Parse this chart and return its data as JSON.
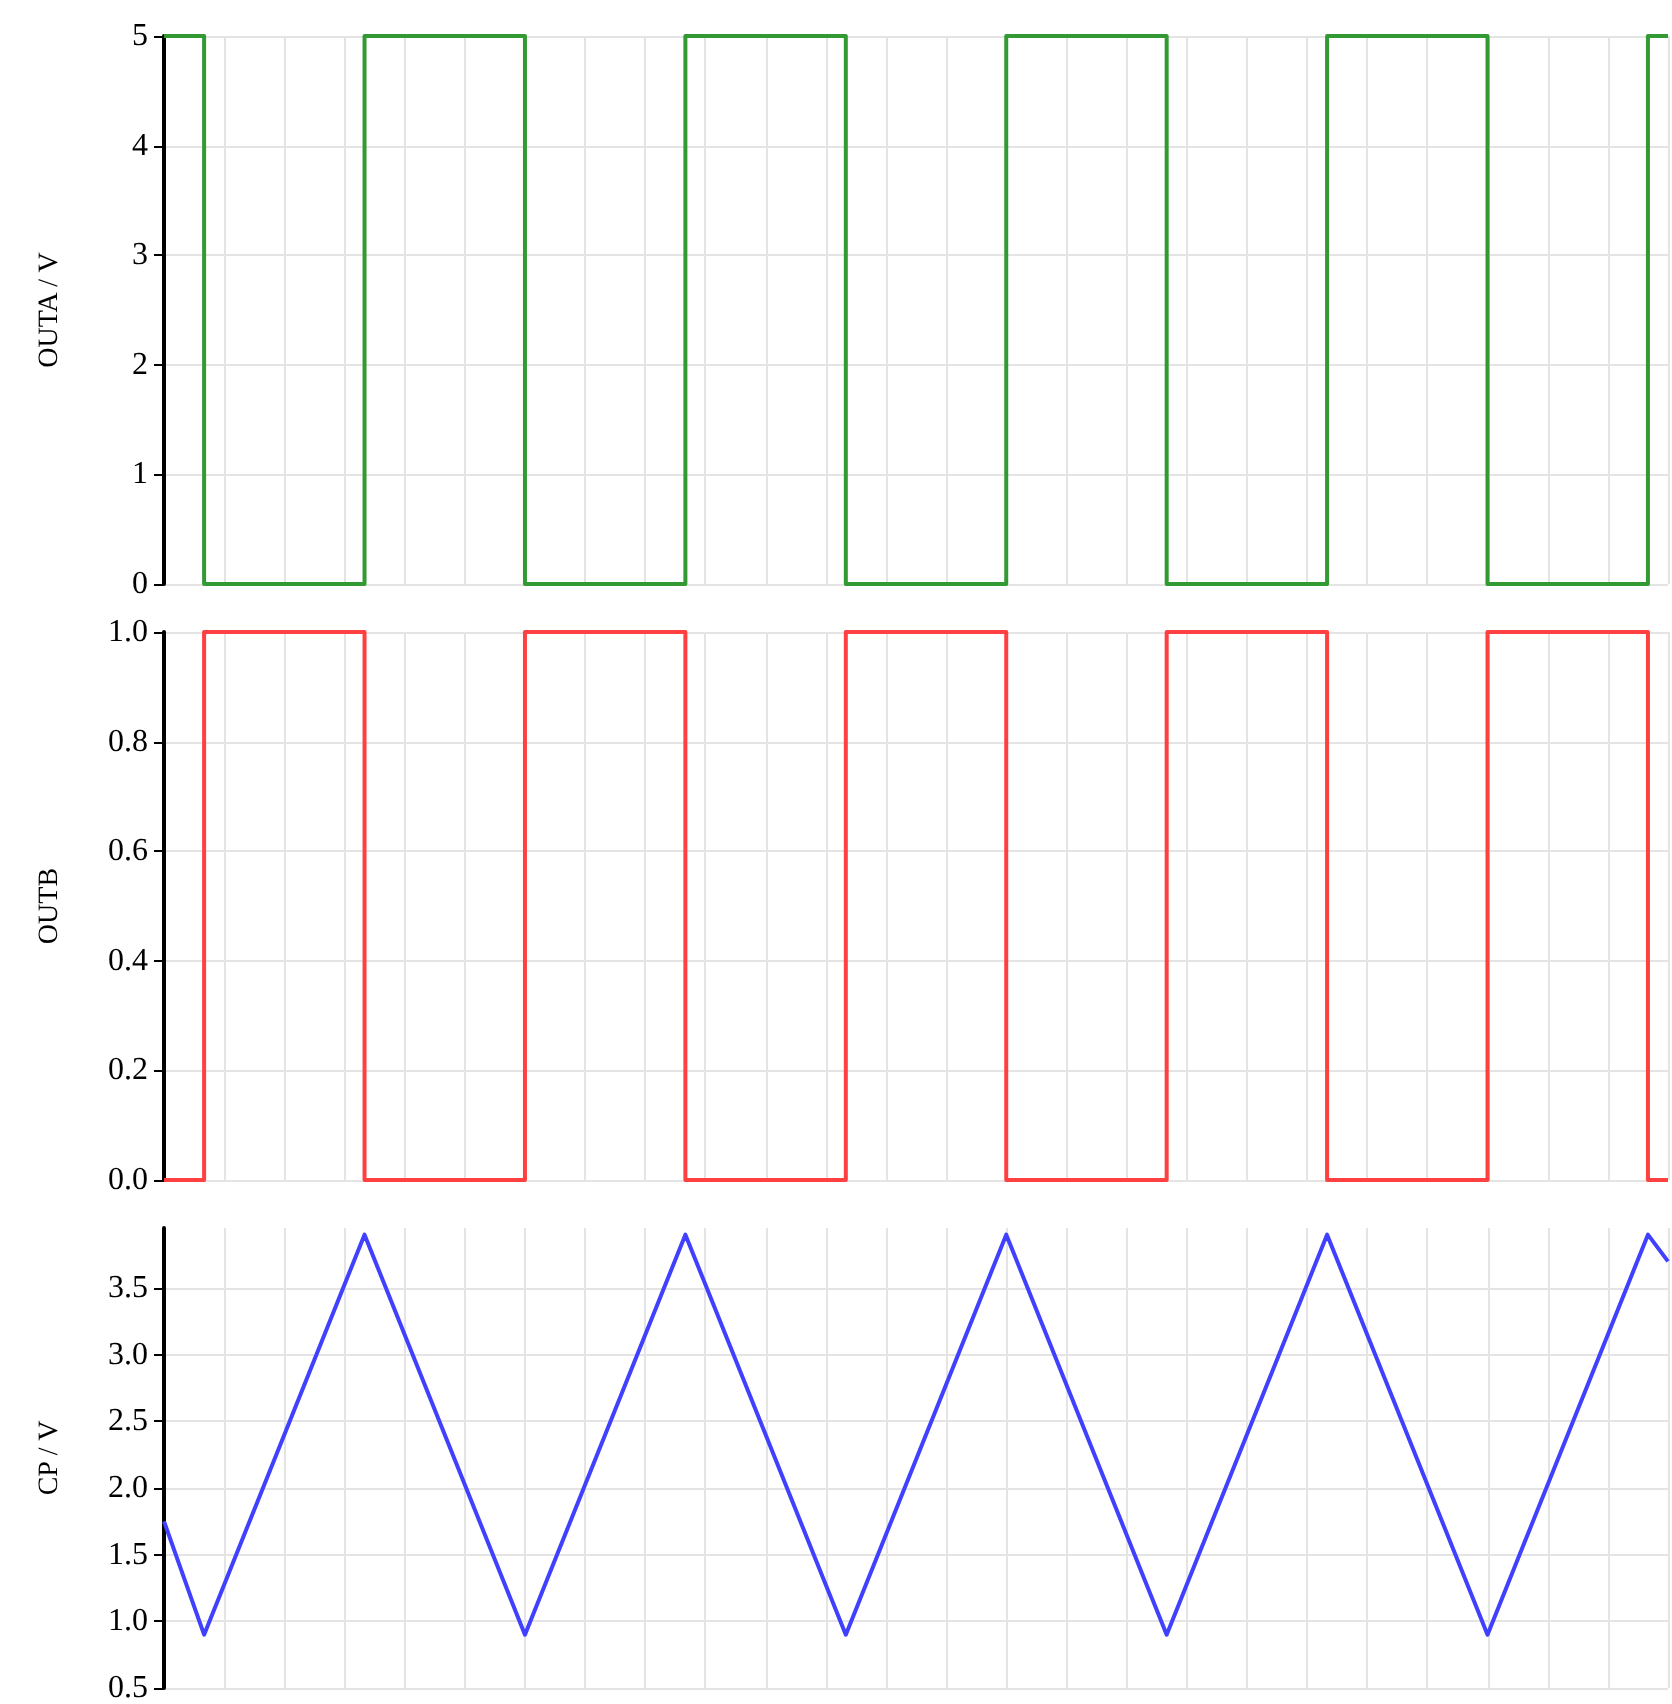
{
  "chart_data": [
    {
      "type": "step",
      "ylabel": "OUTA / V",
      "categories": [
        null,
        null,
        null,
        null,
        null,
        null,
        null,
        null,
        null,
        null,
        null,
        null,
        null,
        null,
        null,
        null,
        null,
        null,
        null,
        null,
        null,
        null,
        null,
        null,
        null,
        null,
        null,
        null,
        null,
        null,
        null,
        null,
        null,
        null,
        null,
        null,
        null,
        null,
        null,
        null,
        null,
        null,
        null,
        null,
        null,
        null,
        null,
        null,
        null,
        null,
        null,
        null,
        null,
        null,
        null,
        null,
        null,
        null,
        null,
        null,
        null,
        null,
        null,
        null,
        null,
        null,
        null,
        null,
        null,
        null,
        null,
        null,
        null,
        null,
        null,
        null
      ],
      "series": [
        {
          "color": "#339933",
          "values": [
            5,
            5,
            0,
            0,
            0,
            0,
            0,
            0,
            0,
            0,
            5,
            5,
            5,
            5,
            5,
            5,
            5,
            5,
            0,
            0,
            0,
            0,
            0,
            0,
            0,
            0,
            5,
            5,
            5,
            5,
            5,
            5,
            5,
            5,
            0,
            0,
            0,
            0,
            0,
            0,
            0,
            0,
            5,
            5,
            5,
            5,
            5,
            5,
            5,
            5,
            0,
            0,
            0,
            0,
            0,
            0,
            0,
            0,
            5,
            5,
            5,
            5,
            5,
            5,
            5,
            5,
            0,
            0,
            0,
            0,
            0,
            0,
            0,
            0,
            5,
            5
          ]
        }
      ],
      "ylim": [
        0,
        5
      ],
      "yticks": [
        0,
        1,
        2,
        3,
        4,
        5
      ],
      "grid": true,
      "tick_labels": "y",
      "marker": "none"
    },
    {
      "type": "step",
      "ylabel": "OUTB",
      "categories": [
        null,
        null,
        null,
        null,
        null,
        null,
        null,
        null,
        null,
        null,
        null,
        null,
        null,
        null,
        null,
        null,
        null,
        null,
        null,
        null,
        null,
        null,
        null,
        null,
        null,
        null,
        null,
        null,
        null,
        null,
        null,
        null,
        null,
        null,
        null,
        null,
        null,
        null,
        null,
        null,
        null,
        null,
        null,
        null,
        null,
        null,
        null,
        null,
        null,
        null,
        null,
        null,
        null,
        null,
        null,
        null,
        null,
        null,
        null,
        null,
        null,
        null,
        null,
        null,
        null,
        null,
        null,
        null,
        null,
        null,
        null,
        null,
        null,
        null,
        null,
        null
      ],
      "series": [
        {
          "color": "#ff4040",
          "values": [
            0,
            0,
            1,
            1,
            1,
            1,
            1,
            1,
            1,
            1,
            0,
            0,
            0,
            0,
            0,
            0,
            0,
            0,
            1,
            1,
            1,
            1,
            1,
            1,
            1,
            1,
            0,
            0,
            0,
            0,
            0,
            0,
            0,
            0,
            1,
            1,
            1,
            1,
            1,
            1,
            1,
            1,
            0,
            0,
            0,
            0,
            0,
            0,
            0,
            0,
            1,
            1,
            1,
            1,
            1,
            1,
            1,
            1,
            0,
            0,
            0,
            0,
            0,
            0,
            0,
            0,
            1,
            1,
            1,
            1,
            1,
            1,
            1,
            1,
            0,
            0
          ]
        }
      ],
      "ylim": [
        0,
        1
      ],
      "yticks": [
        {
          "value": 0,
          "label": "0.0"
        },
        0.2,
        0.4,
        0.6,
        0.8,
        {
          "value": 1,
          "label": "1.0"
        }
      ],
      "grid": true,
      "tick_labels": "y",
      "marker": "none"
    },
    {
      "type": "line",
      "ylabel": "CP / V",
      "categories": [
        null,
        null,
        null,
        null,
        null,
        null,
        null,
        null,
        null,
        null,
        null,
        null,
        null,
        null,
        null,
        null,
        null,
        null,
        null,
        null,
        null,
        null,
        null,
        null,
        null,
        null,
        null,
        null,
        null,
        null,
        null,
        null,
        null,
        null,
        null,
        null,
        null,
        null,
        null,
        null,
        null,
        null,
        null,
        null,
        null,
        null,
        null,
        null,
        null,
        null,
        null,
        null,
        null,
        null,
        null,
        null,
        null,
        null,
        null,
        null,
        null,
        null,
        null,
        null,
        null,
        null,
        null,
        null,
        null,
        null,
        null,
        null,
        null,
        null,
        null,
        null
      ],
      "series": [
        {
          "color": "#4040ff",
          "values": [
            1.75,
            null,
            0.9,
            null,
            null,
            null,
            null,
            null,
            null,
            null,
            3.9,
            null,
            null,
            null,
            null,
            null,
            null,
            null,
            0.9,
            null,
            null,
            null,
            null,
            null,
            null,
            null,
            3.9,
            null,
            null,
            null,
            null,
            null,
            null,
            null,
            0.9,
            null,
            null,
            null,
            null,
            null,
            null,
            null,
            3.9,
            null,
            null,
            null,
            null,
            null,
            null,
            null,
            0.9,
            null,
            null,
            null,
            null,
            null,
            null,
            null,
            3.9,
            null,
            null,
            null,
            null,
            null,
            null,
            null,
            0.9,
            null,
            null,
            null,
            null,
            null,
            null,
            null,
            3.9,
            3.7
          ]
        }
      ],
      "ylim": [
        0.5,
        3.95
      ],
      "yticks": [
        0.5,
        {
          "value": 1,
          "label": "1.0"
        },
        1.5,
        {
          "value": 2,
          "label": "2.0"
        },
        2.5,
        {
          "value": 3,
          "label": "3.0"
        },
        3.5
      ],
      "grid": true,
      "tick_labels": "y",
      "marker": "none"
    }
  ]
}
